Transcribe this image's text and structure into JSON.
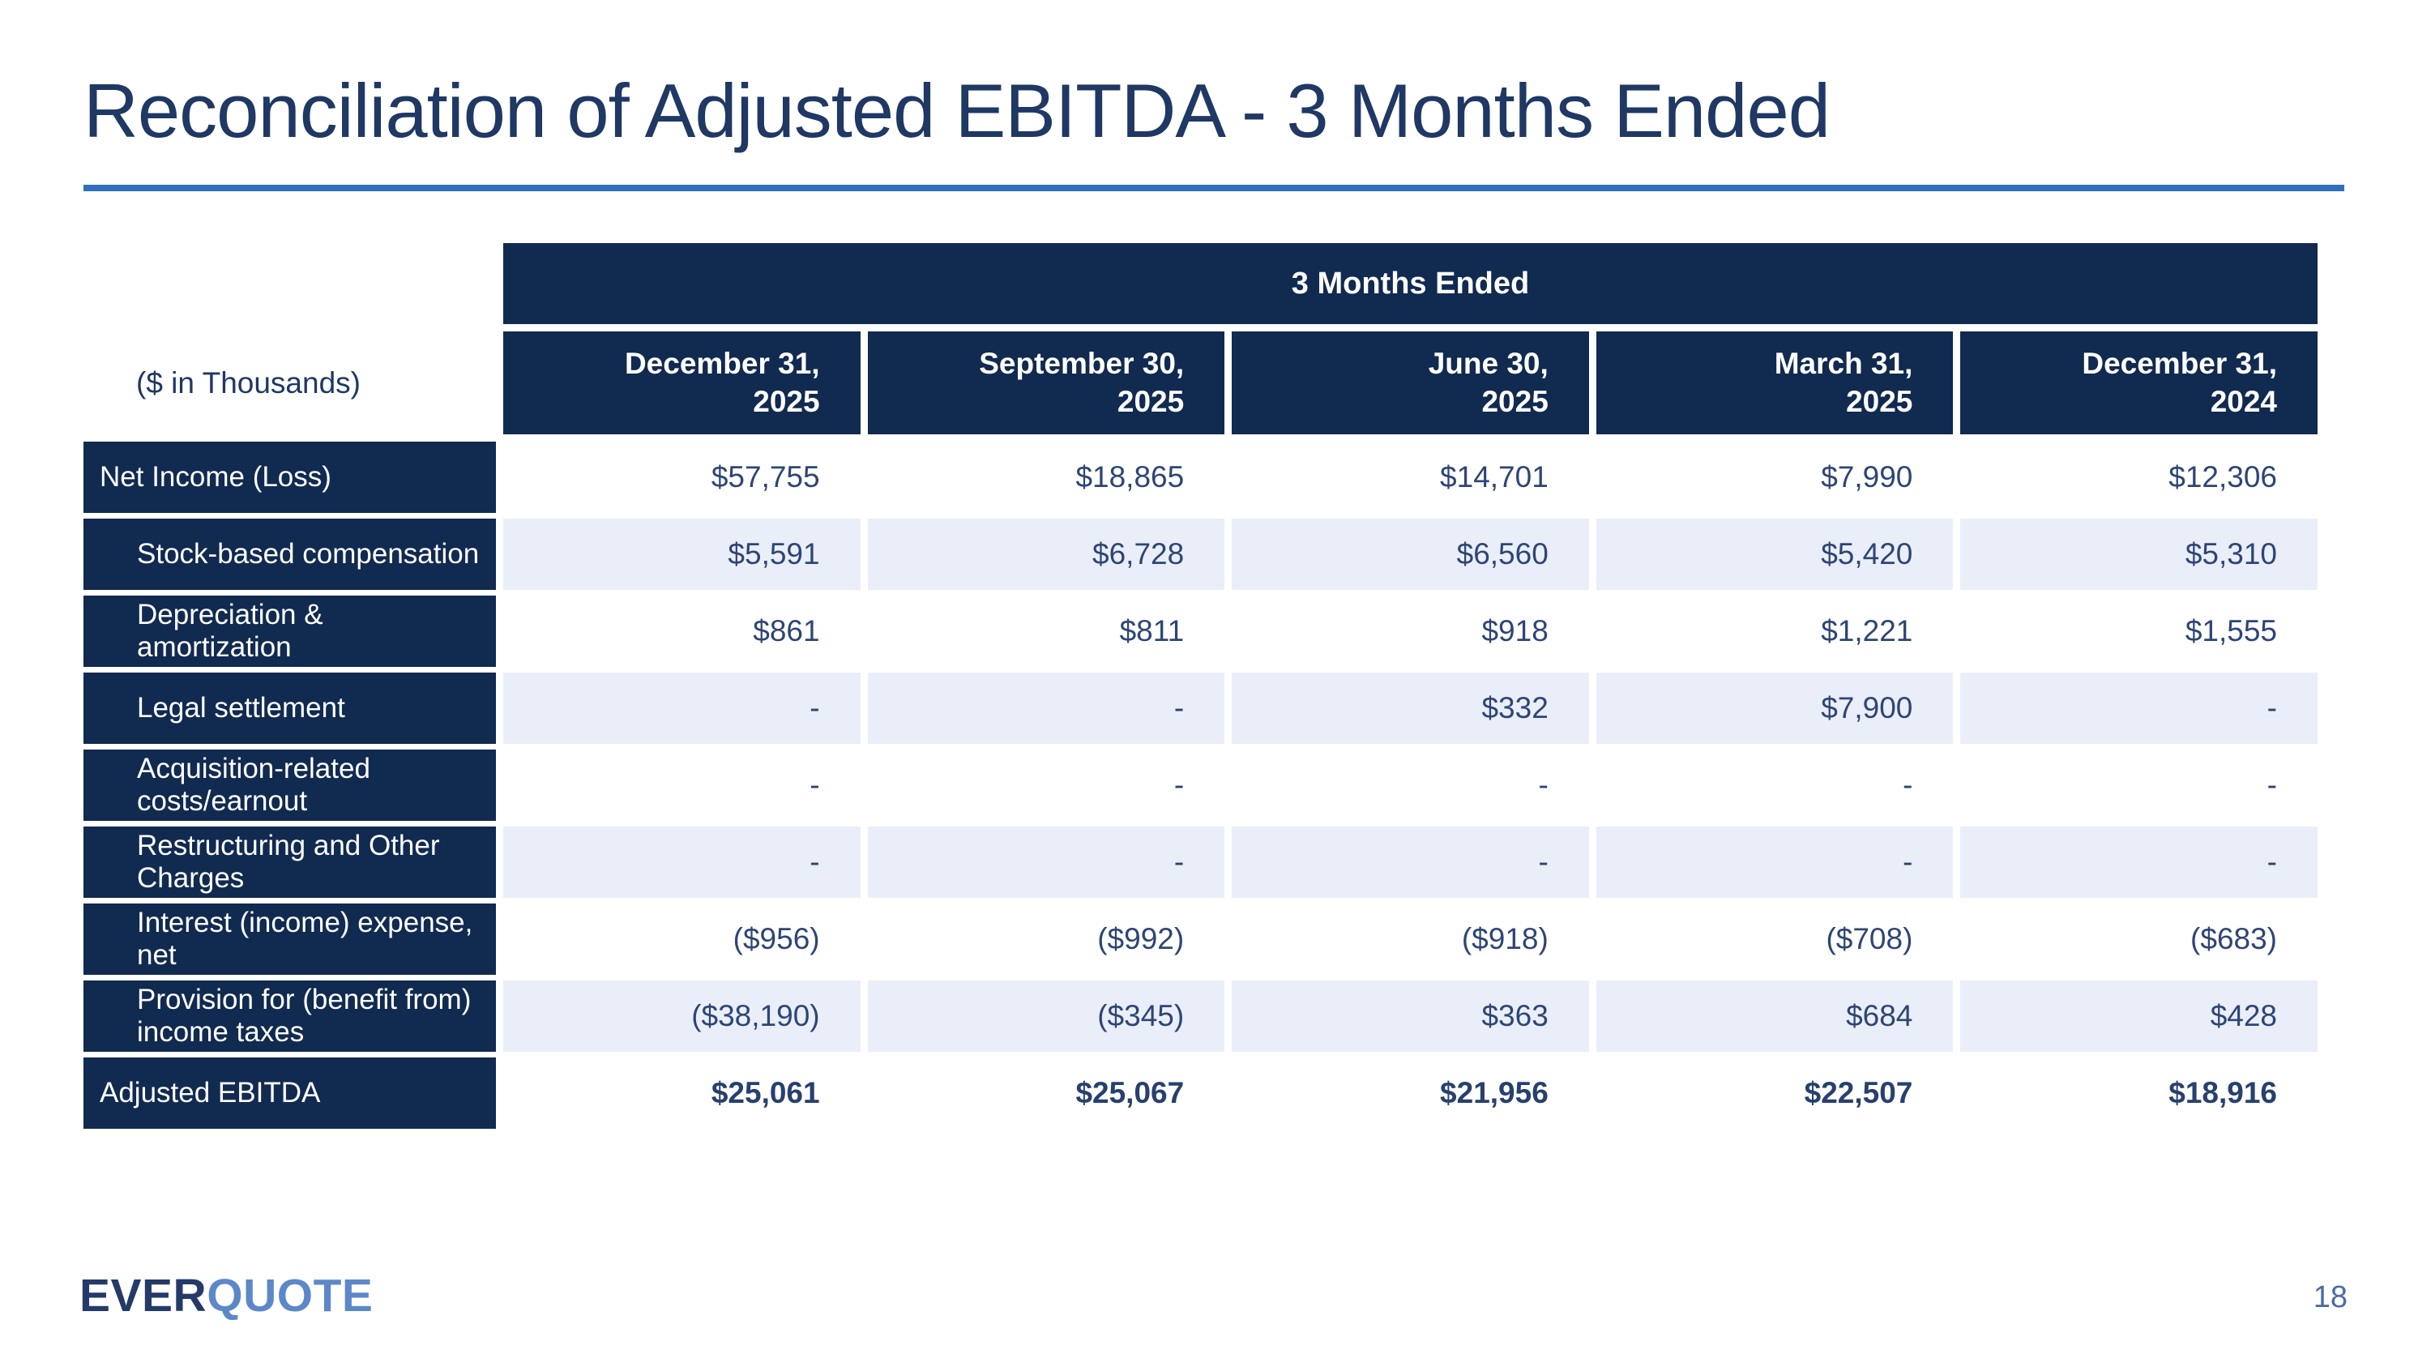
{
  "slide": {
    "title": "Reconciliation of Adjusted EBITDA - 3 Months Ended",
    "page_number": "18",
    "logo": {
      "part1": "EVER",
      "part2": "QUOTE"
    }
  },
  "colors": {
    "navy_fill": "#112a50",
    "title_text": "#1f3864",
    "rule_blue": "#2e6fbe",
    "value_text": "#2e4575",
    "shaded_row": "#eaeef8",
    "logo_navy": "#243a69",
    "logo_blue": "#5c88c9"
  },
  "table": {
    "group_header": "3 Months Ended",
    "corner_label": "($ in Thousands)",
    "columns": [
      {
        "line1": "December 31,",
        "line2": "2025"
      },
      {
        "line1": "September 30,",
        "line2": "2025"
      },
      {
        "line1": "June 30,",
        "line2": "2025"
      },
      {
        "line1": "March 31,",
        "line2": "2025"
      },
      {
        "line1": "December 31,",
        "line2": "2024"
      }
    ],
    "rows": [
      {
        "label": "Net Income (Loss)",
        "values": [
          "$57,755",
          "$18,865",
          "$14,701",
          "$7,990",
          "$12,306"
        ]
      },
      {
        "label": "Stock-based compensation",
        "values": [
          "$5,591",
          "$6,728",
          "$6,560",
          "$5,420",
          "$5,310"
        ]
      },
      {
        "label": "Depreciation & amortization",
        "values": [
          "$861",
          "$811",
          "$918",
          "$1,221",
          "$1,555"
        ]
      },
      {
        "label": "Legal settlement",
        "values": [
          "-",
          "-",
          "$332",
          "$7,900",
          "-"
        ]
      },
      {
        "label": "Acquisition-related costs/earnout",
        "values": [
          "-",
          "-",
          "-",
          "-",
          "-"
        ]
      },
      {
        "label": "Restructuring and Other Charges",
        "values": [
          "-",
          "-",
          "-",
          "-",
          "-"
        ]
      },
      {
        "label": "Interest (income) expense, net",
        "values": [
          "($956)",
          "($992)",
          "($918)",
          "($708)",
          "($683)"
        ]
      },
      {
        "label": "Provision for (benefit from) income taxes",
        "values": [
          "($38,190)",
          "($345)",
          "$363",
          "$684",
          "$428"
        ]
      },
      {
        "label": "Adjusted EBITDA",
        "values": [
          "$25,061",
          "$25,067",
          "$21,956",
          "$22,507",
          "$18,916"
        ]
      }
    ]
  }
}
